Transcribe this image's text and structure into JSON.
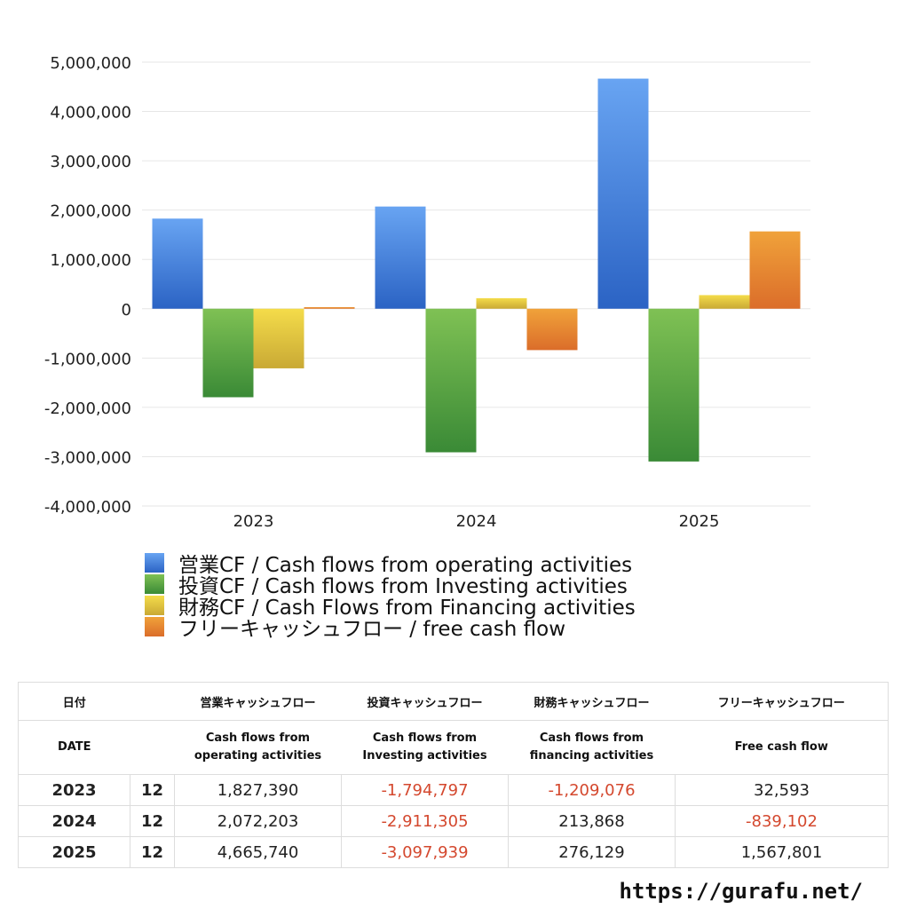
{
  "chart_data": {
    "type": "bar",
    "categories": [
      "2023",
      "2024",
      "2025"
    ],
    "series": [
      {
        "name": "営業CF / Cash flows from operating activities",
        "values": [
          1827390,
          2072203,
          4665740
        ],
        "color_top": "#68a4f2",
        "color_bottom": "#2b63c4"
      },
      {
        "name": "投資CF / Cash flows from Investing activities",
        "values": [
          -1794797,
          -2911305,
          -3097939
        ],
        "color_top": "#7fc154",
        "color_bottom": "#3a8a36"
      },
      {
        "name": "財務CF / Cash Flows from Financing activities",
        "values": [
          -1209076,
          213868,
          276129
        ],
        "color_top": "#f4dc4a",
        "color_bottom": "#c9a935"
      },
      {
        "name": "フリーキャッシュフロー / free cash flow",
        "values": [
          32593,
          -839102,
          1567801
        ],
        "color_top": "#f0a23a",
        "color_bottom": "#db6d2a"
      }
    ],
    "ylim": [
      -4000000,
      5000000
    ],
    "yticks": [
      "5,000,000",
      "4,000,000",
      "3,000,000",
      "2,000,000",
      "1,000,000",
      "0",
      "-1,000,000",
      "-2,000,000",
      "-3,000,000",
      "-4,000,000"
    ],
    "ytick_values": [
      5000000,
      4000000,
      3000000,
      2000000,
      1000000,
      0,
      -1000000,
      -2000000,
      -3000000,
      -4000000
    ],
    "grid": true,
    "legend_position": "bottom"
  },
  "legend": [
    "営業CF / Cash flows from operating activities",
    "投資CF / Cash flows from Investing activities",
    "財務CF / Cash Flows from Financing activities",
    "フリーキャッシュフロー / free cash flow"
  ],
  "table": {
    "header_ja": {
      "date": "日付",
      "operating": "営業キャッシュフロー",
      "investing": "投資キャッシュフロー",
      "financing": "財務キャッシュフロー",
      "free": "フリーキャッシュフロー"
    },
    "header_en": {
      "date": "DATE",
      "operating_1": "Cash flows from",
      "operating_2": "operating activities",
      "investing_1": "Cash flows from",
      "investing_2": "Investing activities",
      "financing_1": "Cash flows from",
      "financing_2": "financing activities",
      "free": "Free cash flow"
    },
    "rows": [
      {
        "year": "2023",
        "month": "12",
        "operating": "1,827,390",
        "investing": "-1,794,797",
        "financing": "-1,209,076",
        "free": "32,593"
      },
      {
        "year": "2024",
        "month": "12",
        "operating": "2,072,203",
        "investing": "-2,911,305",
        "financing": "213,868",
        "free": "-839,102"
      },
      {
        "year": "2025",
        "month": "12",
        "operating": "4,665,740",
        "investing": "-3,097,939",
        "financing": "276,129",
        "free": "1,567,801"
      }
    ]
  },
  "footer": {
    "url": "https://gurafu.net/"
  },
  "colors": {
    "negative": "#d4482e",
    "grid": "#e6e6e6",
    "border": "#dddddd"
  }
}
